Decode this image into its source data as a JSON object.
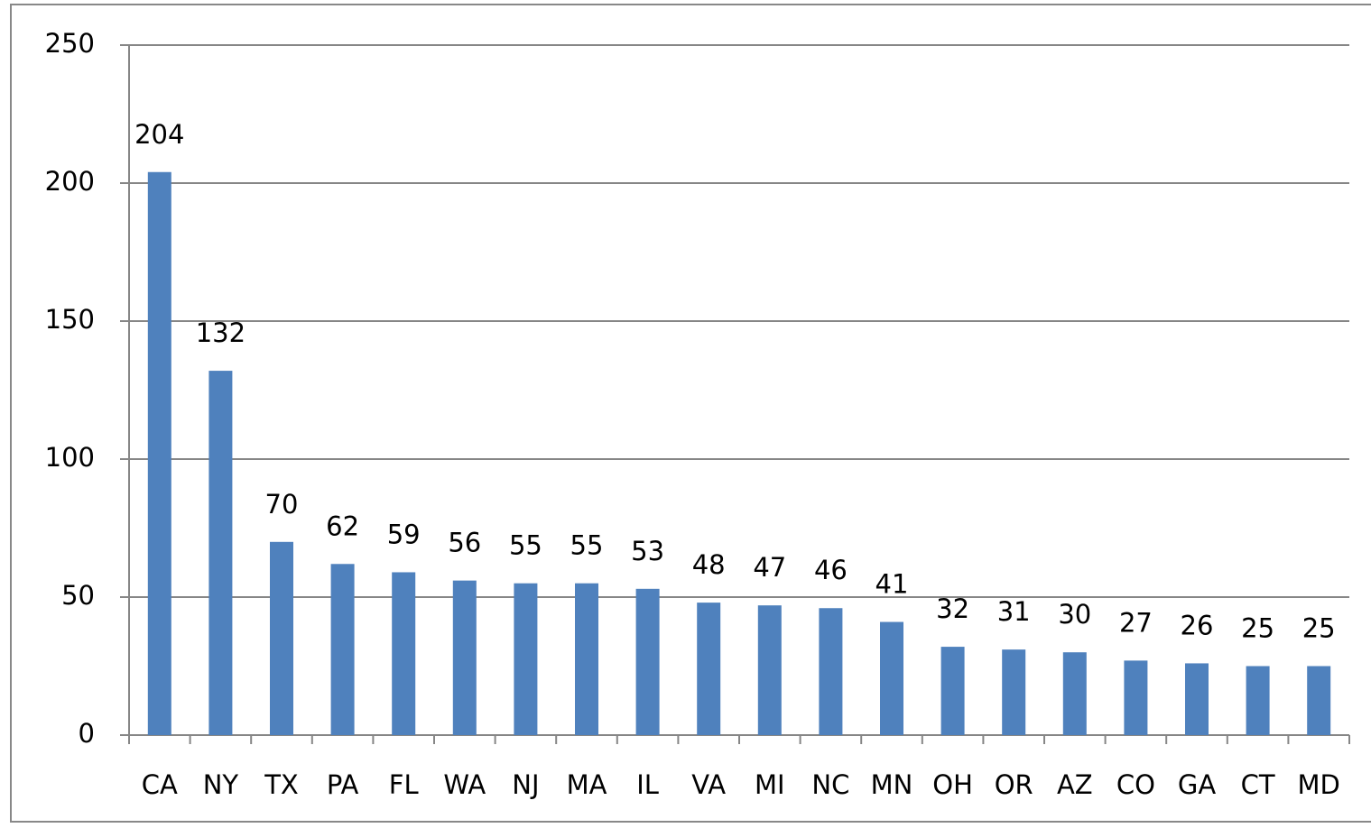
{
  "chart_data": {
    "type": "bar",
    "categories": [
      "CA",
      "NY",
      "TX",
      "PA",
      "FL",
      "WA",
      "NJ",
      "MA",
      "IL",
      "VA",
      "MI",
      "NC",
      "MN",
      "OH",
      "OR",
      "AZ",
      "CO",
      "GA",
      "CT",
      "MD"
    ],
    "values": [
      204,
      132,
      70,
      62,
      59,
      56,
      55,
      55,
      53,
      48,
      47,
      46,
      41,
      32,
      31,
      30,
      27,
      26,
      25,
      25
    ],
    "color": "#4f81bd",
    "ylim": [
      0,
      250
    ],
    "yticks": [
      0,
      50,
      100,
      150,
      200,
      250
    ],
    "grid": true
  }
}
